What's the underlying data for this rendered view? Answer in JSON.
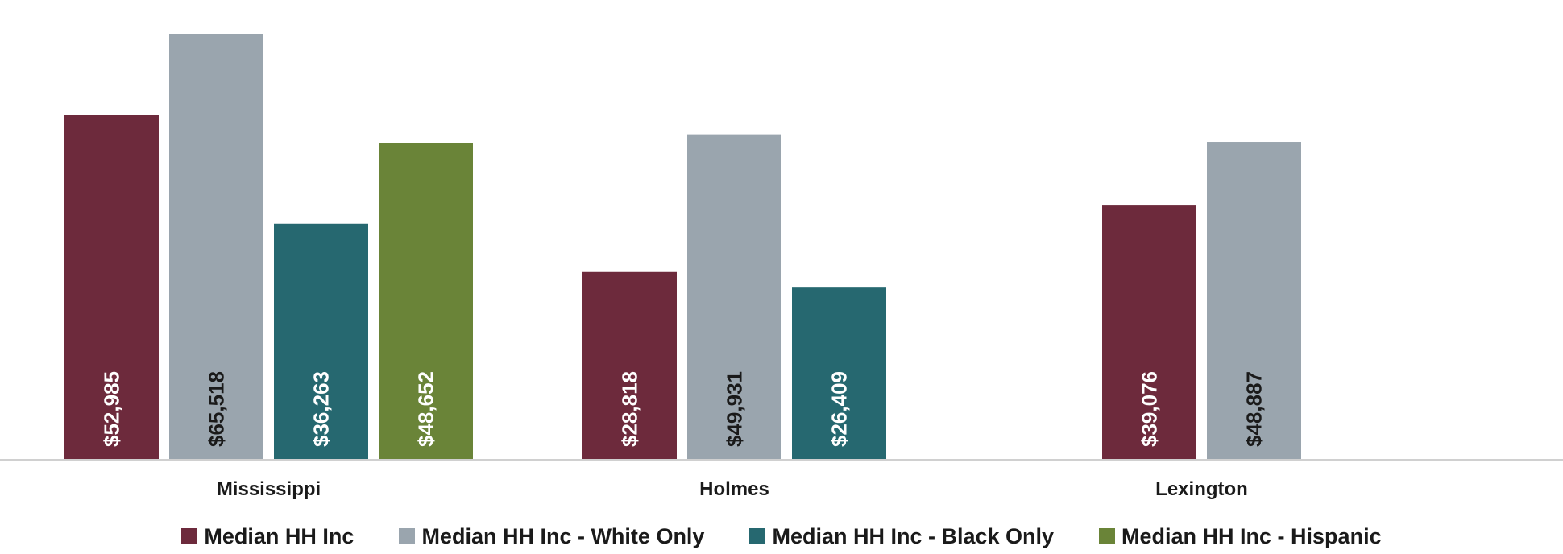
{
  "chart_data": {
    "type": "bar",
    "title": "",
    "xlabel": "",
    "ylabel": "",
    "ylim": [
      0,
      68000
    ],
    "grid": false,
    "legend_position": "bottom",
    "categories": [
      "Mississippi",
      "Holmes",
      "Lexington"
    ],
    "series": [
      {
        "name": "Median HH Inc",
        "color": "#6d2a3c",
        "label_color": "#ffffff",
        "values": [
          52985,
          28818,
          39076
        ],
        "labels": [
          "$52,985",
          "$28,818",
          "$39,076"
        ]
      },
      {
        "name": "Median HH Inc - White Only",
        "color": "#9aa5ae",
        "label_color": "#1a1a1a",
        "values": [
          65518,
          49931,
          48887
        ],
        "labels": [
          "$65,518",
          "$49,931",
          "$48,887"
        ]
      },
      {
        "name": "Median HH Inc - Black Only",
        "color": "#266870",
        "label_color": "#ffffff",
        "values": [
          36263,
          26409,
          null
        ],
        "labels": [
          "$36,263",
          "$26,409",
          ""
        ]
      },
      {
        "name": "Median HH Inc - Hispanic",
        "color": "#6a8438",
        "label_color": "#ffffff",
        "values": [
          48652,
          null,
          null
        ],
        "labels": [
          "$48,652",
          "",
          ""
        ]
      }
    ]
  }
}
